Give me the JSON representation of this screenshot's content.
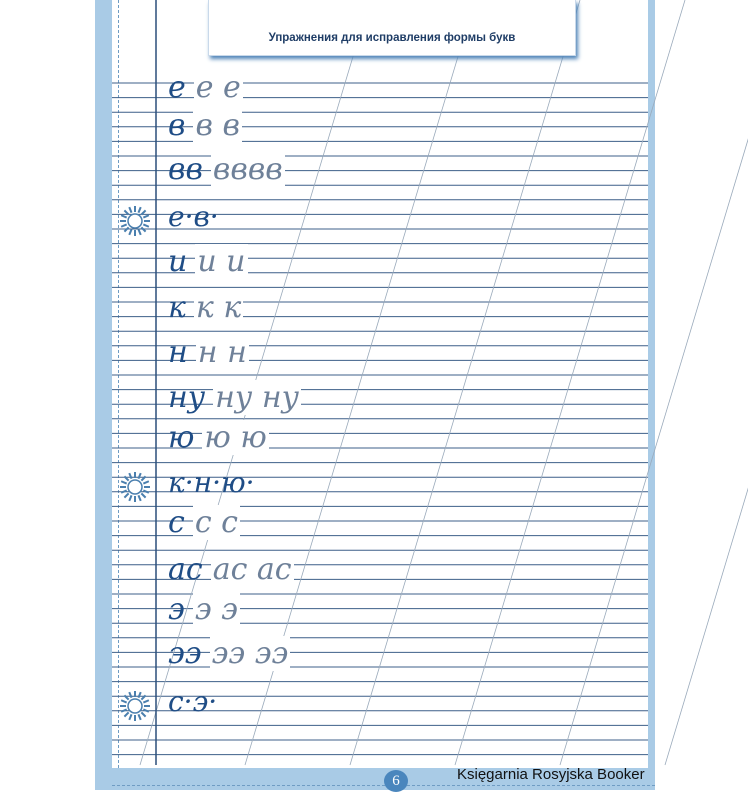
{
  "header": {
    "title": "Упражнения для исправления формы букв"
  },
  "rows": [
    {
      "model": "е",
      "trace": "е е",
      "type": "practice"
    },
    {
      "model": "в",
      "trace": "в в",
      "type": "practice"
    },
    {
      "model": "вв",
      "trace": "вввв",
      "type": "practice"
    },
    {
      "model": "е·в·",
      "trace": "",
      "type": "summary"
    },
    {
      "model": "и",
      "trace": "и и",
      "type": "practice"
    },
    {
      "model": "к",
      "trace": "к к",
      "type": "practice"
    },
    {
      "model": "н",
      "trace": "н н",
      "type": "practice"
    },
    {
      "model": "ну",
      "trace": "ну ну",
      "type": "practice"
    },
    {
      "model": "ю",
      "trace": "ю ю",
      "type": "practice"
    },
    {
      "model": "к·н·ю·",
      "trace": "",
      "type": "summary"
    },
    {
      "model": "с",
      "trace": "с с",
      "type": "practice"
    },
    {
      "model": "ас",
      "trace": "ас ас",
      "type": "practice"
    },
    {
      "model": "э",
      "trace": "э э",
      "type": "practice"
    },
    {
      "model": "ээ",
      "trace": "ээ ээ",
      "type": "practice"
    },
    {
      "model": "с·э·",
      "trace": "",
      "type": "summary"
    }
  ],
  "icons": {
    "summary_marker": "sun-icon"
  },
  "footer": {
    "page_number": "6",
    "publisher": "Księgarnia Rosyjska Booker"
  },
  "colors": {
    "border": "#a9cbe6",
    "ink": "#1f4d86",
    "red_ink": "#d22a4c",
    "lines": "#2c4f7a"
  }
}
